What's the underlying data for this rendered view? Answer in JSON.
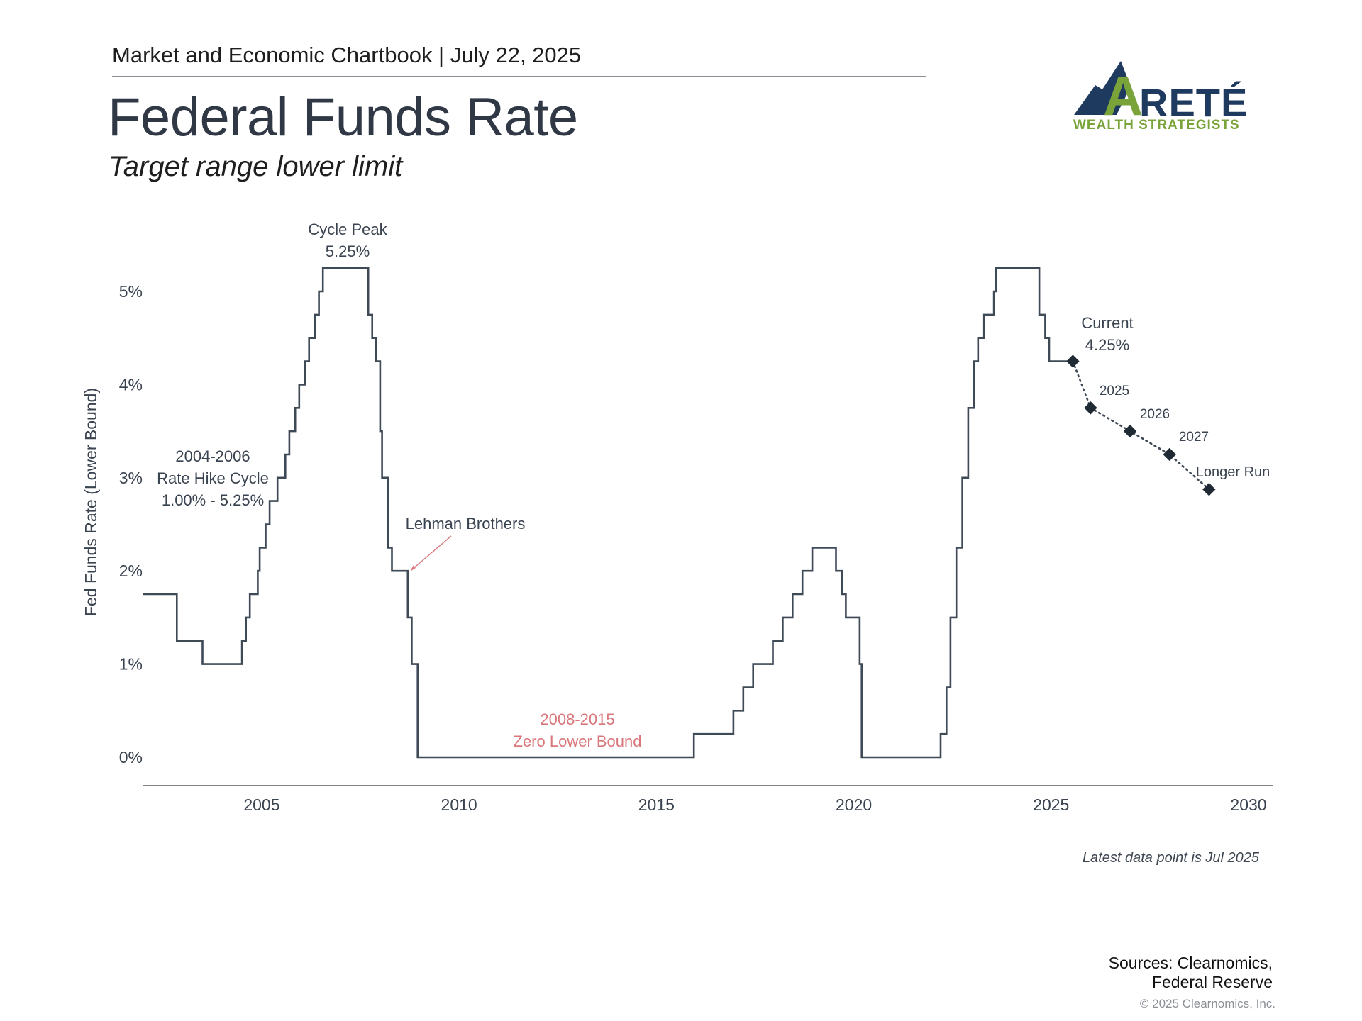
{
  "header": {
    "chartbook": "Market and Economic Chartbook | July 22, 2025",
    "title": "Federal Funds Rate",
    "subtitle": "Target range lower limit"
  },
  "logo": {
    "word": "RETÉ",
    "letter": "A",
    "tagline": "WEALTH STRATEGISTS",
    "colors": {
      "navy": "#1f3a5f",
      "green": "#7aa33a"
    }
  },
  "footer": {
    "note": "Latest data point is Jul 2025",
    "sources_line1": "Sources: Clearnomics,",
    "sources_line2": "Federal Reserve",
    "copyright": "© 2025 Clearnomics, Inc."
  },
  "chart_data": {
    "type": "line",
    "title": "Federal Funds Rate",
    "subtitle": "Target range lower limit",
    "ylabel": "Fed Funds Rate (Lower Bound)",
    "xlabel": "",
    "xlim": [
      2002,
      2030.5
    ],
    "ylim": [
      0,
      5.5
    ],
    "x_ticks": [
      2005,
      2010,
      2015,
      2020,
      2025,
      2030
    ],
    "x_tick_labels": [
      "2005",
      "2010",
      "2015",
      "2020",
      "2025",
      "2030"
    ],
    "y_ticks": [
      0,
      1,
      2,
      3,
      4,
      5
    ],
    "y_tick_labels": [
      "0%",
      "1%",
      "2%",
      "3%",
      "4%",
      "5%"
    ],
    "grid": false,
    "colors": {
      "line": "#3f4a57",
      "annotation": "#d9777b",
      "text": "#3a4350",
      "axis": "#555b62"
    },
    "series": [
      {
        "style": "step",
        "points": [
          [
            2002.0,
            1.75
          ],
          [
            2002.85,
            1.25
          ],
          [
            2003.5,
            1.0
          ],
          [
            2004.5,
            1.25
          ],
          [
            2004.6,
            1.5
          ],
          [
            2004.7,
            1.75
          ],
          [
            2004.9,
            2.0
          ],
          [
            2004.95,
            2.25
          ],
          [
            2005.1,
            2.5
          ],
          [
            2005.2,
            2.75
          ],
          [
            2005.4,
            3.0
          ],
          [
            2005.6,
            3.25
          ],
          [
            2005.7,
            3.5
          ],
          [
            2005.85,
            3.75
          ],
          [
            2005.95,
            4.0
          ],
          [
            2006.1,
            4.25
          ],
          [
            2006.2,
            4.5
          ],
          [
            2006.35,
            4.75
          ],
          [
            2006.45,
            5.0
          ],
          [
            2006.55,
            5.25
          ],
          [
            2007.7,
            4.75
          ],
          [
            2007.8,
            4.5
          ],
          [
            2007.9,
            4.25
          ],
          [
            2008.0,
            3.5
          ],
          [
            2008.05,
            3.0
          ],
          [
            2008.2,
            2.25
          ],
          [
            2008.3,
            2.0
          ],
          [
            2008.7,
            1.5
          ],
          [
            2008.8,
            1.0
          ],
          [
            2008.95,
            0.0
          ],
          [
            2015.95,
            0.25
          ],
          [
            2016.95,
            0.5
          ],
          [
            2017.2,
            0.75
          ],
          [
            2017.45,
            1.0
          ],
          [
            2017.95,
            1.25
          ],
          [
            2018.2,
            1.5
          ],
          [
            2018.45,
            1.75
          ],
          [
            2018.7,
            2.0
          ],
          [
            2018.95,
            2.25
          ],
          [
            2019.55,
            2.0
          ],
          [
            2019.7,
            1.75
          ],
          [
            2019.8,
            1.5
          ],
          [
            2020.15,
            1.0
          ],
          [
            2020.2,
            0.0
          ],
          [
            2022.2,
            0.25
          ],
          [
            2022.35,
            0.75
          ],
          [
            2022.45,
            1.5
          ],
          [
            2022.6,
            2.25
          ],
          [
            2022.75,
            3.0
          ],
          [
            2022.9,
            3.75
          ],
          [
            2023.05,
            4.25
          ],
          [
            2023.15,
            4.5
          ],
          [
            2023.3,
            4.75
          ],
          [
            2023.55,
            5.0
          ],
          [
            2023.6,
            5.25
          ],
          [
            2024.7,
            4.75
          ],
          [
            2024.85,
            4.5
          ],
          [
            2024.95,
            4.25
          ],
          [
            2025.55,
            4.25
          ]
        ]
      },
      {
        "style": "dotted",
        "points": [
          [
            2025.55,
            4.25,
            "Current"
          ],
          [
            2026.0,
            3.75,
            "2025"
          ],
          [
            2027.0,
            3.5,
            "2026"
          ],
          [
            2028.0,
            3.25,
            "2027"
          ],
          [
            2029.0,
            2.875,
            "Longer Run"
          ]
        ]
      }
    ],
    "annotations": {
      "current_l1": "Current",
      "current_l2": "4.25%",
      "proj_2025": "2025",
      "proj_2026": "2026",
      "proj_2027": "2027",
      "proj_longer": "Longer Run",
      "peak_l1": "Cycle Peak",
      "peak_l2": "5.25%",
      "hike_l1": "2004-2006",
      "hike_l2": "Rate Hike Cycle",
      "hike_l3": "1.00% - 5.25%",
      "lehman": "Lehman Brothers",
      "zlb_l1": "2008-2015",
      "zlb_l2": "Zero Lower Bound"
    }
  }
}
